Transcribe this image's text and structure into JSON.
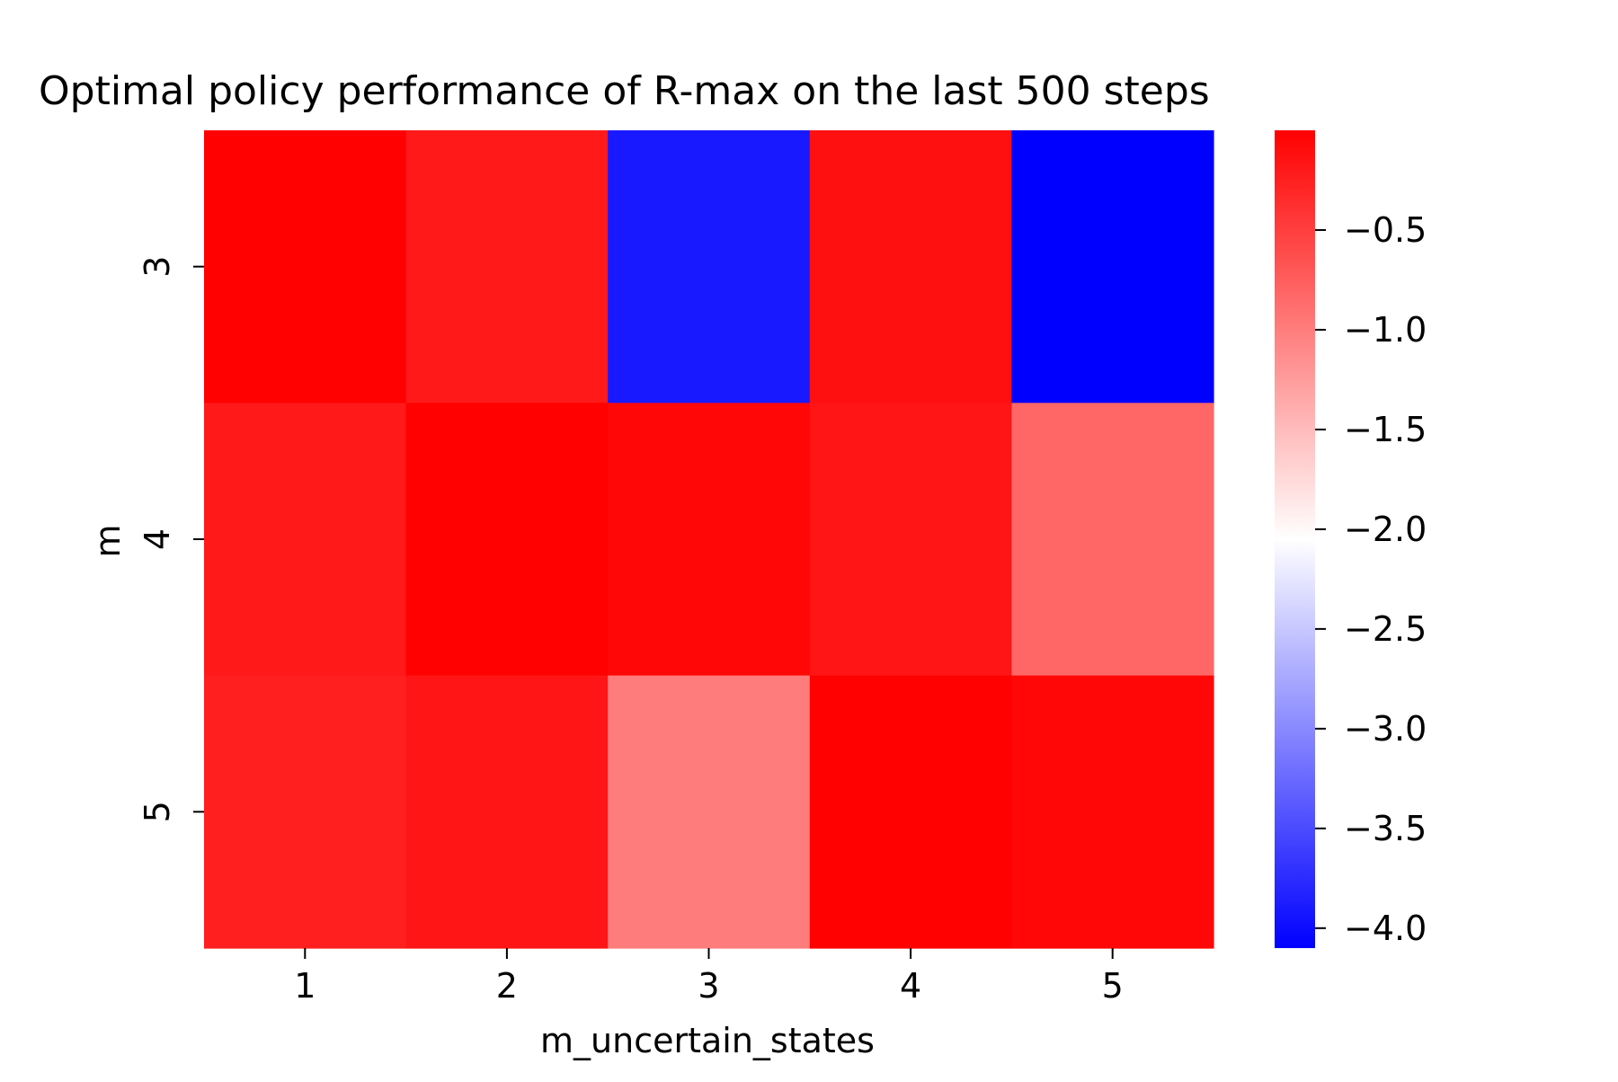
{
  "chart_data": {
    "type": "heatmap",
    "title": "Optimal policy performance of R-max on the last 500 steps",
    "xlabel": "m_uncertain_states",
    "ylabel": "m",
    "x_categories": [
      "1",
      "2",
      "3",
      "4",
      "5"
    ],
    "y_categories": [
      "3",
      "4",
      "5"
    ],
    "values": [
      [
        -0.01,
        -0.2,
        -3.9,
        -0.13,
        -4.1
      ],
      [
        -0.2,
        -0.01,
        -0.06,
        -0.17,
        -0.82
      ],
      [
        -0.25,
        -0.17,
        -1.0,
        -0.01,
        -0.06
      ]
    ],
    "colorbar": {
      "min": -4.1,
      "max": 0.0,
      "center": -2.0,
      "ticks": [
        -0.5,
        -1.0,
        -1.5,
        -2.0,
        -2.5,
        -3.0,
        -3.5,
        -4.0
      ],
      "tick_labels": [
        "−0.5",
        "−1.0",
        "−1.5",
        "−2.0",
        "−2.5",
        "−3.0",
        "−3.5",
        "−4.0"
      ],
      "colormap": "bwr",
      "colors": {
        "low": "#0000ff",
        "mid": "#ffffff",
        "high": "#ff0000"
      }
    }
  }
}
